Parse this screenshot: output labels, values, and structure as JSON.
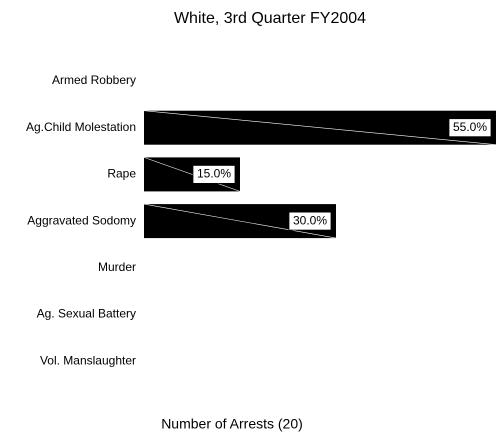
{
  "chart_data": {
    "type": "bar",
    "orientation": "horizontal",
    "title": "White, 3rd Quarter FY2004",
    "x_label": "Number of Arrests (20)",
    "categories": [
      "Armed Robbery",
      "Ag.Child Molestation",
      "Rape",
      "Aggravated Sodomy",
      "Murder",
      "Ag. Sexual Battery",
      "Vol. Manslaughter"
    ],
    "values": [
      0,
      55,
      15,
      30,
      0,
      0,
      0
    ],
    "value_labels": [
      null,
      "55.0%",
      "15.0%",
      "30.0%",
      null,
      null,
      null
    ],
    "color": "#000000",
    "xlim": [
      0,
      55
    ]
  }
}
